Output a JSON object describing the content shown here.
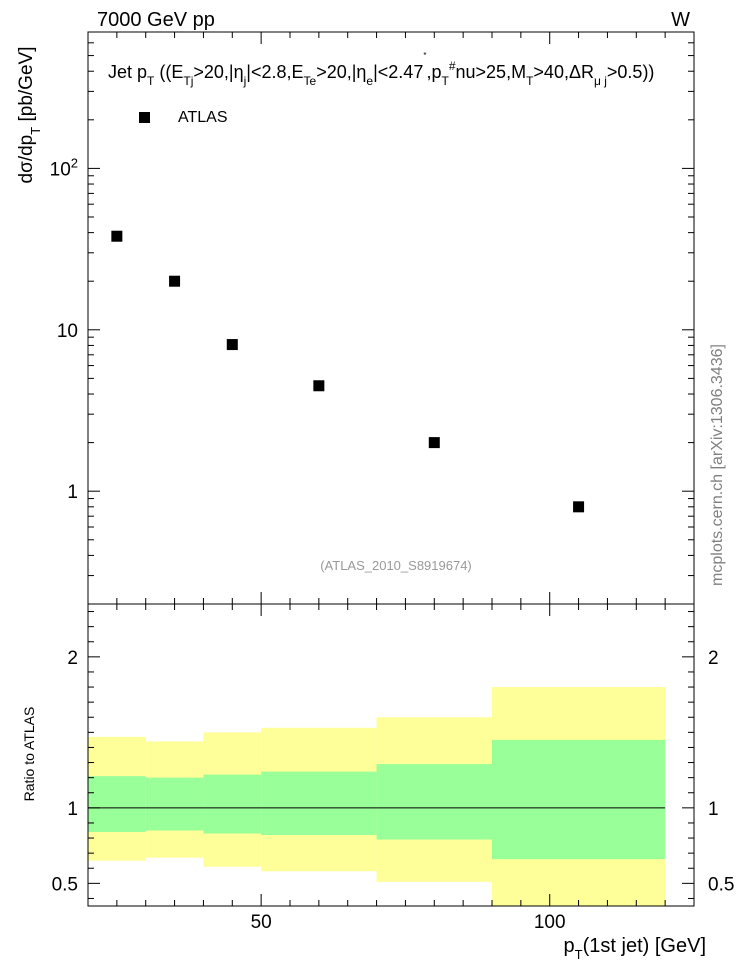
{
  "header": {
    "left": "7000 GeV pp",
    "right": "W"
  },
  "side_note": "mcplots.cern.ch [arXiv:1306.3436]",
  "chart_data": [
    {
      "type": "scatter",
      "title": "Jet p_T ((E_Tj>20,|η_j|<2.8,E_Te>20,|η_e|<2.47,p_T^#nu>25,M_T>40,ΔR_μj>0.5))",
      "ylabel": "dσ/dp_T [pb/GeV]",
      "yscale": "log",
      "xlim": [
        20,
        125
      ],
      "ylim": [
        0.2,
        700
      ],
      "y_ticks": [
        {
          "value": 1,
          "label": "1"
        },
        {
          "value": 10,
          "label": "10"
        },
        {
          "value": 100,
          "label": "10",
          "sup": "2"
        }
      ],
      "legend": {
        "position": "top-left",
        "label": "ATLAS"
      },
      "analysis_label": "(ATLAS_2010_S8919674)",
      "series": [
        {
          "name": "ATLAS",
          "x": [
            25,
            35,
            45,
            60,
            80,
            105
          ],
          "y": [
            38,
            20,
            8.1,
            4.5,
            2.0,
            0.8
          ]
        }
      ],
      "grid": false
    },
    {
      "type": "area",
      "ylabel": "Ratio to ATLAS",
      "xlabel": "p_T(1st jet) [GeV]",
      "xlim": [
        20,
        125
      ],
      "ylim": [
        0.35,
        2.35
      ],
      "x_ticks": [
        {
          "value": 50,
          "label": "50"
        },
        {
          "value": 100,
          "label": "100"
        }
      ],
      "y_ticks": [
        {
          "value": 0.5,
          "label": "0.5"
        },
        {
          "value": 1,
          "label": "1"
        },
        {
          "value": 2,
          "label": "2"
        }
      ],
      "reference_line": 1,
      "bins": [
        {
          "lo": 20,
          "hi": 30,
          "stat_lo": 0.84,
          "stat_hi": 1.21,
          "tot_lo": 0.65,
          "tot_hi": 1.47
        },
        {
          "lo": 30,
          "hi": 40,
          "stat_lo": 0.85,
          "stat_hi": 1.2,
          "tot_lo": 0.67,
          "tot_hi": 1.44
        },
        {
          "lo": 40,
          "hi": 50,
          "stat_lo": 0.83,
          "stat_hi": 1.22,
          "tot_lo": 0.61,
          "tot_hi": 1.5
        },
        {
          "lo": 50,
          "hi": 70,
          "stat_lo": 0.82,
          "stat_hi": 1.24,
          "tot_lo": 0.58,
          "tot_hi": 1.53
        },
        {
          "lo": 70,
          "hi": 90,
          "stat_lo": 0.79,
          "stat_hi": 1.29,
          "tot_lo": 0.51,
          "tot_hi": 1.6
        },
        {
          "lo": 90,
          "hi": 120,
          "stat_lo": 0.66,
          "stat_hi": 1.45,
          "tot_lo": 0.35,
          "tot_hi": 1.8
        }
      ],
      "colors": {
        "stat_band": "#99ff99",
        "total_band": "#ffff99"
      }
    }
  ]
}
